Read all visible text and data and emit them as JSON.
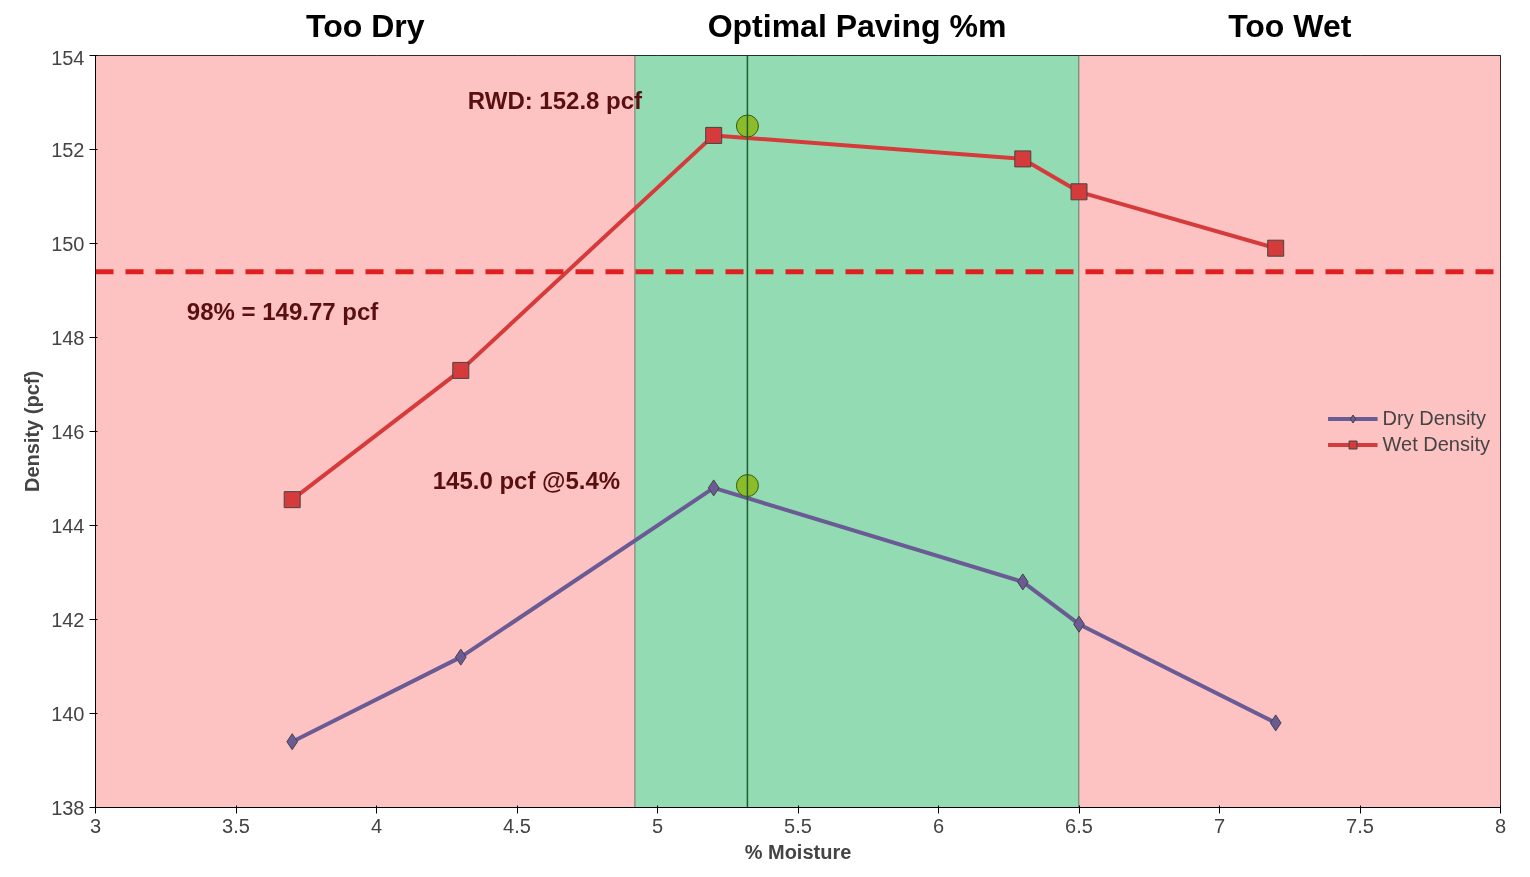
{
  "chart_data": {
    "type": "line",
    "xlabel": "% Moisture",
    "ylabel": "Density (pcf)",
    "xlim": [
      3,
      8
    ],
    "xticks": [
      3,
      3.5,
      4,
      4.5,
      5,
      5.5,
      6,
      6.5,
      7,
      7.5,
      8
    ],
    "ylim": [
      138,
      154
    ],
    "yticks": [
      138,
      140,
      142,
      144,
      146,
      148,
      150,
      152,
      154
    ],
    "grid": true,
    "legend": "right",
    "series": [
      {
        "name": "Dry Density",
        "color": "#6b5b95",
        "marker": "diamond",
        "x": [
          3.7,
          4.3,
          5.2,
          6.3,
          6.5,
          7.2
        ],
        "values": [
          139.4,
          141.2,
          144.8,
          142.8,
          141.9,
          139.8
        ]
      },
      {
        "name": "Wet Density",
        "color": "#d63b3b",
        "marker": "square",
        "x": [
          3.7,
          4.3,
          5.2,
          6.3,
          6.5,
          7.2
        ],
        "values": [
          144.55,
          147.3,
          152.3,
          151.8,
          151.1,
          149.9
        ]
      },
      {
        "type": "scatter",
        "color": "#8dbb2a",
        "marker": "circle",
        "x": [
          5.32,
          5.32
        ],
        "values": [
          152.5,
          144.85
        ]
      }
    ],
    "bands": [
      {
        "axis": "x",
        "from": 3,
        "to": 4.92,
        "label": "Too Dry",
        "color": "#fdc3c3"
      },
      {
        "axis": "x",
        "from": 4.92,
        "to": 6.5,
        "label": "Optimal Paving %m",
        "color": "#93dcb3"
      },
      {
        "axis": "x",
        "from": 6.5,
        "to": 8,
        "label": "Too Wet",
        "color": "#fdc3c3"
      }
    ],
    "ref_lines": [
      {
        "axis": "y",
        "value": 149.4,
        "color": "#e02020",
        "line_style": "dashed"
      },
      {
        "axis": "x",
        "value": 5.32,
        "color": "#1d5e2f",
        "line_style": "solid"
      }
    ],
    "annotations": [
      "RWD: 152.8 pcf",
      "98% = 149.77 pcf",
      "145.0 pcf @5.4%"
    ]
  }
}
